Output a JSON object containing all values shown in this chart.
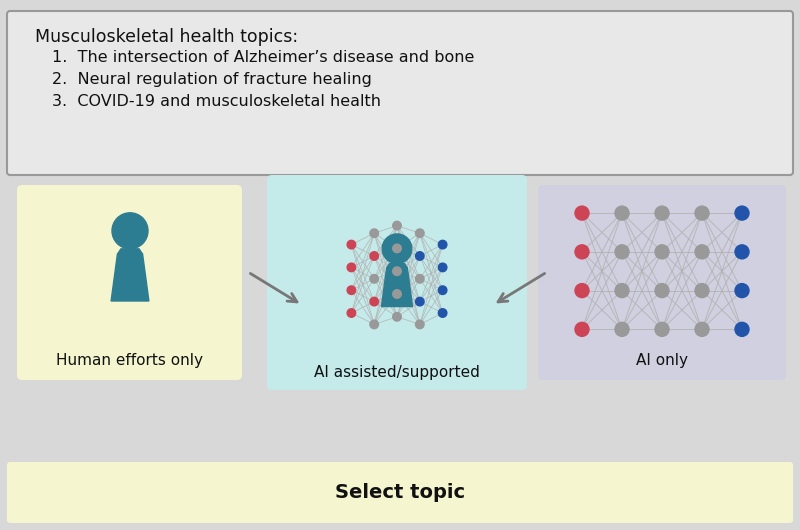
{
  "title_box_text": "Musculoskeletal health topics:",
  "topics": [
    "1.  The intersection of Alzheimer’s disease and bone",
    "2.  Neural regulation of fracture healing",
    "3.  COVID-19 and musculoskeletal health"
  ],
  "bottom_label": "Select topic",
  "human_label": "Human efforts only",
  "ai_assisted_label": "AI assisted/supported",
  "ai_only_label": "AI only",
  "bg_color": "#d8d8d8",
  "top_box_bg": "#e8e8e8",
  "top_box_edge": "#999999",
  "human_box_bg": "#f5f5d0",
  "ai_assisted_box_bg": "#c5eaea",
  "ai_only_box_bg": "#d0d0e0",
  "bottom_panel_bg": "#d8d8d8",
  "bottom_bar_bg": "#f5f5d0",
  "person_color": "#2d7d92",
  "node_gray": "#999999",
  "node_red": "#cc4455",
  "node_blue": "#2255aa",
  "line_color": "#b0b0b0",
  "arrow_color": "#777777",
  "text_color": "#111111"
}
